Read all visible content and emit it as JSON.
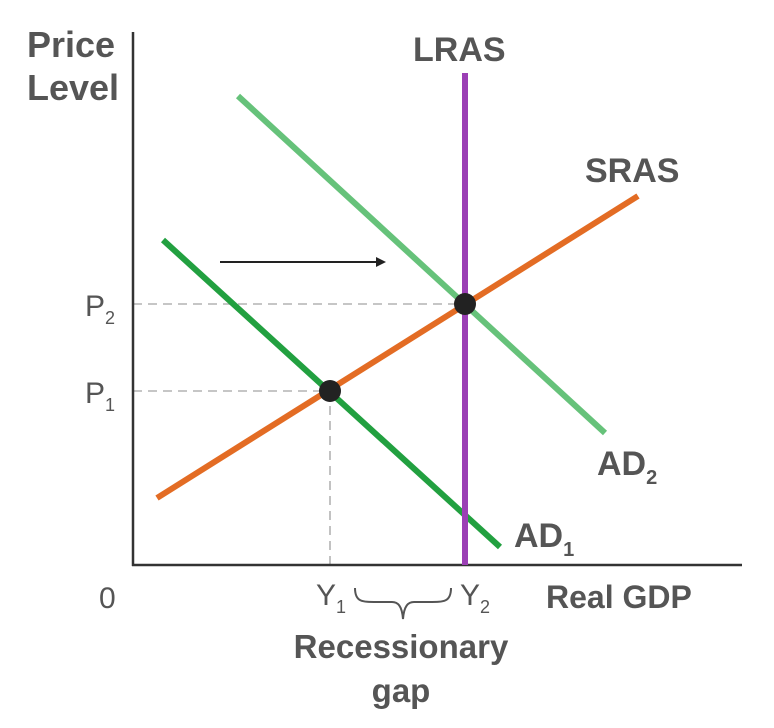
{
  "axes": {
    "y_label_line1": "Price",
    "y_label_line2": "Level",
    "x_label": "Real GDP",
    "origin": "0"
  },
  "curves": {
    "lras": {
      "label": "LRAS",
      "color": "#9b3fb5"
    },
    "sras": {
      "label": "SRAS",
      "color": "#e36c24"
    },
    "ad1": {
      "label": "AD",
      "subscript": "1",
      "color": "#22a040"
    },
    "ad2": {
      "label": "AD",
      "subscript": "2",
      "color": "#66c27a"
    }
  },
  "ticks": {
    "p1": {
      "label": "P",
      "subscript": "1"
    },
    "p2": {
      "label": "P",
      "subscript": "2"
    },
    "y1": {
      "label": "Y",
      "subscript": "1"
    },
    "y2": {
      "label": "Y",
      "subscript": "2"
    }
  },
  "gap": {
    "line1": "Recessionary",
    "line2": "gap"
  },
  "colors": {
    "axis": "#333333",
    "text": "#555555",
    "guide": "#b3b3b3",
    "point": "#222222",
    "arrow": "#222222"
  },
  "icons": {
    "shift_arrow": "right-arrow-icon",
    "gap_brace": "curly-brace-icon"
  }
}
